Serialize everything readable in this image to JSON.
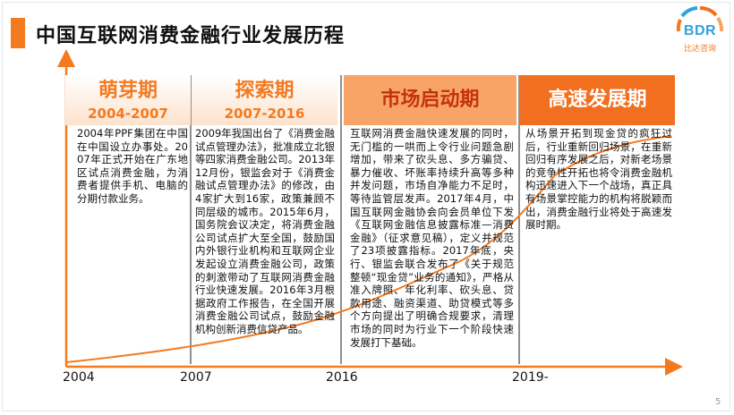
{
  "header": {
    "title": "中国互联网消费金融行业发展历程"
  },
  "logo": {
    "text": "BDR",
    "subtext": "比达咨询"
  },
  "phases": [
    {
      "name": "萌芽期",
      "years": "2004-2007",
      "text": "2004年PPF集团在中国在中国设立办事处。2007年正式开始在广东地区试点消费金融，为消费者提供手机、电脑的分期付款业务。"
    },
    {
      "name": "探索期",
      "years": "2007-2016",
      "text": "2009年我国出台了《消费金融试点管理办法》，批准成立北银等四家消费金融公司。2013年12月份，银监会对于《消费金融试点管理办法》的修改，由4家扩大到16家，政策兼顾不同层级的城市。2015年6月，国务院会议决定，将消费金融公司试点扩大至全国，鼓励国内外银行业机构和互联网企业发起设立消费金融公司，政策的刺激带动了互联网消费金融行业快速发展。2016年3月根据政府工作报告，在全国开展消费金融公司试点，鼓励金融机构创新消费信贷产品。"
    },
    {
      "name": "市场启动期",
      "years": "",
      "text": "互联网消费金融快速发展的同时，无门槛的一哄而上令行业问题急剧增加，带来了砍头息、多方骗贷、暴力催收、坏账率持续升高等多种并发问题，市场自净能力不足时，等待监管层发声。2017年4月，中国互联网金融协会向会员单位下发《互联网金融信息披露标准—消费金融》（征求意见稿），定义并规范了23项披露指标。2017年底，央行、银监会联合发布了《关于规范整顿“现金贷”业务的通知》，严格从准入牌照、年化利率、砍头息、贷款用途、融资渠道、助贷模式等多个方向提出了明确合规要求，清理市场的同时为行业下一个阶段快速发展打下基础。"
    },
    {
      "name": "高速发展期",
      "years": "",
      "text": "从场景开拓到现金贷的疯狂过后，行业重新回归场景，在重新回归有序发展之后，对新老场景的竞争性开拓也将令消费金融机构迅速进入下一个战场，真正具有场景掌控能力的机构将脱颖而出，消费金融行业将处于高速发展时期。"
    }
  ],
  "timeline": {
    "years": [
      "2004",
      "2007",
      "2016",
      "2019-"
    ]
  },
  "page": {
    "number": "5"
  },
  "colors": {
    "accent": "#f47a20",
    "dark_orange": "#f26f1f",
    "mid_orange": "#f9a467",
    "light_orange": "#fde2cd",
    "logo_blue": "#2fa3dc"
  }
}
